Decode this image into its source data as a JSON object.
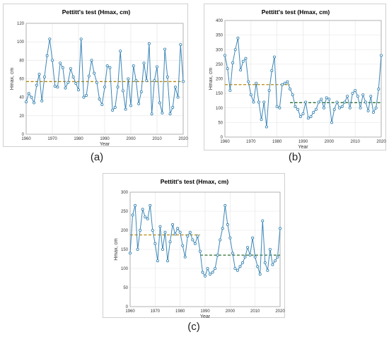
{
  "figure": {
    "captions": [
      "(a)",
      "(b)",
      "(c)"
    ]
  },
  "style": {
    "line_color": "#3b86b8",
    "marker_edge_color": "#2f7fae",
    "mean_line_color_single": "#b8860b",
    "mean_line_color_before": "#b8860b",
    "mean_line_color_after": "#2e6b2e"
  },
  "chart_data": [
    {
      "type": "line",
      "title": "Pettitt's test (Hmax, cm)",
      "xlabel": "Year",
      "ylabel": "Hmax, cm",
      "xlim": [
        1960,
        2020
      ],
      "ylim": [
        0,
        120
      ],
      "xticks": [
        1960,
        1970,
        1980,
        1990,
        2000,
        2010,
        2020
      ],
      "yticks": [
        0,
        20,
        40,
        60,
        80,
        100,
        120
      ],
      "grid": true,
      "x": [
        1960,
        1961,
        1962,
        1963,
        1964,
        1965,
        1966,
        1967,
        1968,
        1969,
        1970,
        1971,
        1972,
        1973,
        1974,
        1975,
        1976,
        1977,
        1978,
        1979,
        1980,
        1981,
        1982,
        1983,
        1984,
        1985,
        1986,
        1987,
        1988,
        1989,
        1990,
        1991,
        1992,
        1993,
        1994,
        1995,
        1996,
        1997,
        1998,
        1999,
        2000,
        2001,
        2002,
        2003,
        2004,
        2005,
        2006,
        2007,
        2008,
        2009,
        2010,
        2011,
        2012,
        2013,
        2014,
        2015,
        2016,
        2017,
        2018,
        2019,
        2020
      ],
      "values": [
        35,
        44,
        40,
        34,
        53,
        65,
        36,
        62,
        85,
        103,
        80,
        52,
        51,
        77,
        72,
        50,
        56,
        71,
        62,
        55,
        48,
        103,
        40,
        42,
        63,
        80,
        66,
        56,
        38,
        32,
        51,
        74,
        72,
        26,
        29,
        51,
        90,
        47,
        27,
        60,
        31,
        74,
        58,
        33,
        46,
        77,
        58,
        98,
        22,
        58,
        73,
        34,
        23,
        92,
        62,
        22,
        29,
        51,
        40,
        97,
        57
      ],
      "reference_lines": [
        {
          "name": "mean",
          "from": 1960,
          "to": 2020,
          "value": 57,
          "color_key": "mean_line_color_single"
        }
      ]
    },
    {
      "type": "line",
      "title": "Pettitt's test (Hmax, cm)",
      "xlabel": "Year",
      "ylabel": "Hmax, cm",
      "xlim": [
        1960,
        2020
      ],
      "ylim": [
        0,
        400
      ],
      "xticks": [
        1960,
        1970,
        1980,
        1990,
        2000,
        2010,
        2020
      ],
      "yticks": [
        0,
        50,
        100,
        150,
        200,
        250,
        300,
        350,
        400
      ],
      "grid": true,
      "x": [
        1960,
        1961,
        1962,
        1963,
        1964,
        1965,
        1966,
        1967,
        1968,
        1969,
        1970,
        1971,
        1972,
        1973,
        1974,
        1975,
        1976,
        1977,
        1978,
        1979,
        1980,
        1981,
        1982,
        1983,
        1984,
        1985,
        1986,
        1987,
        1988,
        1989,
        1990,
        1991,
        1992,
        1993,
        1994,
        1995,
        1996,
        1997,
        1998,
        1999,
        2000,
        2001,
        2002,
        2003,
        2004,
        2005,
        2006,
        2007,
        2008,
        2009,
        2010,
        2011,
        2012,
        2013,
        2014,
        2015,
        2016,
        2017,
        2018,
        2019,
        2020
      ],
      "values": [
        280,
        235,
        160,
        255,
        300,
        340,
        230,
        260,
        270,
        190,
        145,
        120,
        185,
        120,
        60,
        120,
        35,
        160,
        228,
        275,
        105,
        100,
        180,
        185,
        190,
        165,
        145,
        105,
        95,
        70,
        80,
        120,
        65,
        70,
        85,
        95,
        120,
        130,
        100,
        135,
        130,
        50,
        95,
        120,
        100,
        105,
        120,
        140,
        100,
        150,
        160,
        140,
        100,
        145,
        120,
        90,
        140,
        85,
        100,
        165,
        280
      ],
      "reference_lines": [
        {
          "name": "mean before change point",
          "from": 1960,
          "to": 1985,
          "value": 180,
          "color_key": "mean_line_color_before"
        },
        {
          "name": "mean after change point",
          "from": 1985,
          "to": 2020,
          "value": 118,
          "color_key": "mean_line_color_after"
        }
      ]
    },
    {
      "type": "line",
      "title": "Pettitt's test (Hmax, cm)",
      "xlabel": "Year",
      "ylabel": "Hmax, cm",
      "xlim": [
        1960,
        2020
      ],
      "ylim": [
        0,
        300
      ],
      "xticks": [
        1960,
        1970,
        1980,
        1990,
        2000,
        2010,
        2020
      ],
      "yticks": [
        0,
        50,
        100,
        150,
        200,
        250,
        300
      ],
      "grid": true,
      "x": [
        1960,
        1961,
        1962,
        1963,
        1964,
        1965,
        1966,
        1967,
        1968,
        1969,
        1970,
        1971,
        1972,
        1973,
        1974,
        1975,
        1976,
        1977,
        1978,
        1979,
        1980,
        1981,
        1982,
        1983,
        1984,
        1985,
        1986,
        1987,
        1988,
        1989,
        1990,
        1991,
        1992,
        1993,
        1994,
        1995,
        1996,
        1997,
        1998,
        1999,
        2000,
        2001,
        2002,
        2003,
        2004,
        2005,
        2006,
        2007,
        2008,
        2009,
        2010,
        2011,
        2012,
        2013,
        2014,
        2015,
        2016,
        2017,
        2018,
        2019,
        2020
      ],
      "values": [
        140,
        240,
        265,
        150,
        200,
        255,
        235,
        230,
        265,
        200,
        165,
        120,
        210,
        150,
        195,
        120,
        170,
        215,
        190,
        205,
        195,
        160,
        130,
        185,
        195,
        175,
        165,
        185,
        145,
        90,
        80,
        100,
        85,
        90,
        100,
        135,
        175,
        205,
        265,
        215,
        180,
        140,
        100,
        95,
        105,
        115,
        130,
        155,
        135,
        180,
        130,
        105,
        85,
        225,
        115,
        95,
        150,
        110,
        120,
        130,
        205
      ],
      "reference_lines": [
        {
          "name": "mean before change point",
          "from": 1960,
          "to": 1988,
          "value": 188,
          "color_key": "mean_line_color_before"
        },
        {
          "name": "mean after change point",
          "from": 1988,
          "to": 2020,
          "value": 135,
          "color_key": "mean_line_color_after"
        }
      ]
    }
  ]
}
